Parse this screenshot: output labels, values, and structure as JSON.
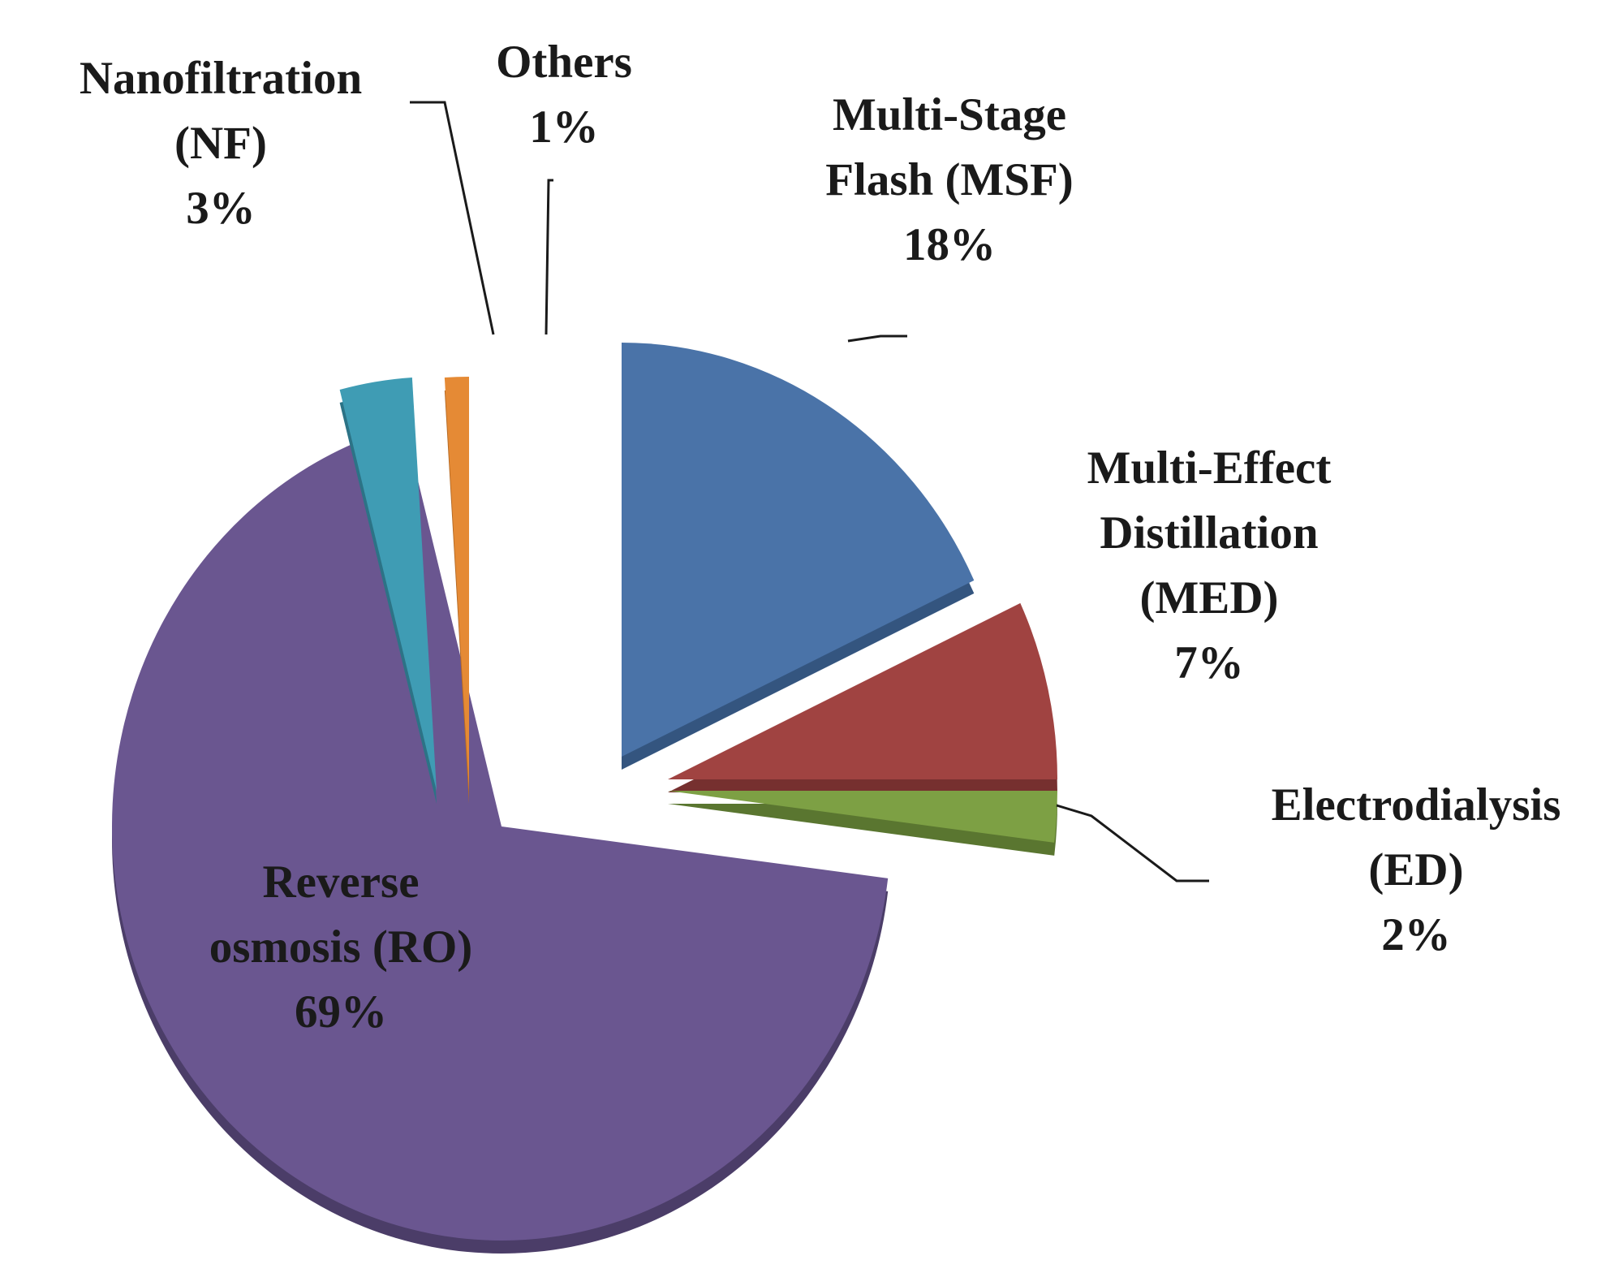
{
  "chart_data": {
    "type": "pie",
    "title": "",
    "slices": [
      {
        "name": "Multi-Stage Flash (MSF)",
        "label_lines": [
          "Multi-Stage",
          "Flash (MSF)",
          "18%"
        ],
        "value": 18,
        "color": "#4a73a8",
        "side_color": "#34557f"
      },
      {
        "name": "Multi-Effect Distillation (MED)",
        "label_lines": [
          "Multi-Effect",
          "Distillation",
          "(MED)",
          "7%"
        ],
        "value": 7,
        "color": "#a04341",
        "side_color": "#76302f"
      },
      {
        "name": "Electrodialysis (ED)",
        "label_lines": [
          "Electrodialysis",
          "(ED)",
          "2%"
        ],
        "value": 2,
        "color": "#7da044",
        "side_color": "#5a7630"
      },
      {
        "name": "Reverse osmosis (RO)",
        "label_lines": [
          "Reverse",
          "osmosis (RO)",
          "69%"
        ],
        "value": 69,
        "color": "#6a5690",
        "side_color": "#4b3d68"
      },
      {
        "name": "Nanofiltration (NF)",
        "label_lines": [
          "Nanofiltration",
          "(NF)",
          "3%"
        ],
        "value": 3,
        "color": "#3f9cb4",
        "side_color": "#2c7386"
      },
      {
        "name": "Others",
        "label_lines": [
          "Others",
          "1%"
        ],
        "value": 1,
        "color": "#e58a35",
        "side_color": "#b56a25"
      }
    ],
    "legend": "none"
  }
}
